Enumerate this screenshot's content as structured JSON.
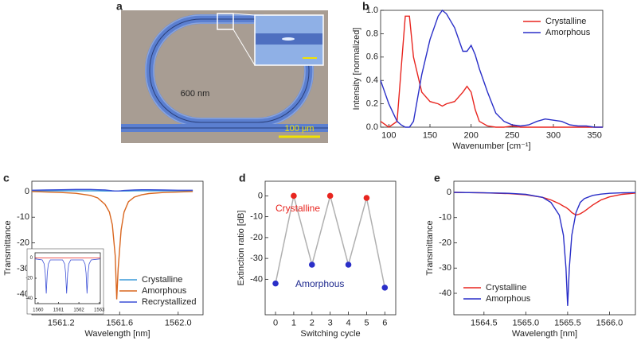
{
  "panel_labels": [
    "a",
    "b",
    "c",
    "d",
    "e"
  ],
  "image": {
    "label": "600 nm",
    "scale_bar": "100 μm"
  },
  "chart_data": [
    {
      "type": "line",
      "xlabel": "Wavenumber [cm⁻¹]",
      "ylabel": "Intensity [normalized]",
      "x": [
        90,
        100,
        110,
        115,
        120,
        125,
        130,
        140,
        150,
        160,
        165,
        170,
        180,
        190,
        195,
        200,
        205,
        210,
        220,
        230,
        240,
        250,
        260,
        270,
        280,
        290,
        300,
        310,
        320,
        330,
        340,
        350,
        360
      ],
      "series": [
        {
          "name": "Crystalline",
          "color": "#e8251f",
          "values": [
            0.05,
            0.0,
            0.05,
            0.5,
            0.95,
            0.95,
            0.6,
            0.3,
            0.22,
            0.2,
            0.18,
            0.2,
            0.22,
            0.3,
            0.35,
            0.3,
            0.15,
            0.05,
            0.01,
            0,
            0,
            0.01,
            0,
            0,
            0,
            0,
            0,
            0,
            0,
            0,
            0,
            0,
            0
          ]
        },
        {
          "name": "Amorphous",
          "color": "#2a2fc8",
          "values": [
            0.4,
            0.2,
            0.05,
            0.02,
            0.0,
            0.0,
            0.05,
            0.45,
            0.75,
            0.95,
            1.0,
            0.97,
            0.85,
            0.65,
            0.65,
            0.7,
            0.62,
            0.5,
            0.3,
            0.12,
            0.05,
            0.02,
            0.01,
            0.02,
            0.05,
            0.07,
            0.06,
            0.05,
            0.02,
            0.01,
            0.01,
            0,
            0
          ]
        }
      ],
      "xlim": [
        90,
        360
      ],
      "xticks": [
        100,
        150,
        200,
        250,
        300,
        350
      ],
      "ylim": [
        0,
        1
      ],
      "yticks": [
        {
          "value": 0,
          "label": "0.0"
        },
        {
          "value": 0.2,
          "label": "0.2"
        },
        {
          "value": 0.4,
          "label": "0.4"
        },
        {
          "value": 0.6,
          "label": "0.6"
        },
        {
          "value": 0.8,
          "label": "0.8"
        },
        {
          "value": 1,
          "label": "1.0"
        }
      ],
      "legend": "upper right"
    },
    {
      "type": "line",
      "xlabel": "Wavelength [nm]",
      "ylabel": "Transmittance",
      "x": [
        1561.0,
        1561.1,
        1561.2,
        1561.3,
        1561.4,
        1561.45,
        1561.5,
        1561.53,
        1561.55,
        1561.57,
        1561.58,
        1561.59,
        1561.61,
        1561.63,
        1561.66,
        1561.7,
        1561.75,
        1561.8,
        1561.9,
        1562.0,
        1562.1
      ],
      "series": [
        {
          "name": "Crystalline",
          "color": "#3a9ad9",
          "values": [
            0.3,
            0.3,
            0.3,
            0.3,
            0.3,
            0.3,
            0.2,
            0.2,
            0.2,
            0.2,
            0.2,
            0.2,
            0.2,
            0.2,
            0.2,
            0.3,
            0.3,
            0.3,
            0.3,
            0.3,
            0.3
          ]
        },
        {
          "name": "Amorphous",
          "color": "#d9661f",
          "values": [
            0,
            -0.2,
            -0.4,
            -0.7,
            -1.5,
            -2.5,
            -5,
            -8,
            -13,
            -25,
            -42,
            -30,
            -15,
            -8,
            -4,
            -2.2,
            -1.3,
            -0.8,
            -0.4,
            -0.2,
            0
          ]
        },
        {
          "name": "Recrystallized",
          "color": "#3b4fd6",
          "values": [
            0.5,
            0.6,
            0.7,
            0.8,
            0.8,
            0.7,
            0.6,
            0.4,
            0.3,
            0.2,
            0.2,
            0.2,
            0.3,
            0.4,
            0.5,
            0.6,
            0.7,
            0.7,
            0.6,
            0.5,
            0.5
          ]
        }
      ],
      "xlim": [
        1561.0,
        1562.17
      ],
      "xticks": [
        1561.2,
        1561.6,
        {
          "value": 1562,
          "label": "1562.0"
        }
      ],
      "ylim": [
        -48,
        4
      ],
      "yticks": [
        0,
        -10,
        -20,
        -30,
        -40
      ],
      "legend": "lower right"
    },
    {
      "type": "line",
      "x": [
        1559.85,
        1560.2,
        1560.3,
        1560.35,
        1560.4,
        1560.45,
        1560.5,
        1560.6,
        1561.2,
        1561.3,
        1561.35,
        1561.4,
        1561.45,
        1561.5,
        1561.6,
        1562.2,
        1562.3,
        1562.35,
        1562.4,
        1562.45,
        1562.5,
        1562.6,
        1563.05
      ],
      "series": [
        {
          "color": "#e8251f",
          "values": [
            0,
            0,
            0,
            0,
            0,
            0,
            0,
            0,
            0,
            0,
            0,
            0,
            0,
            0,
            0,
            0,
            0,
            0,
            0,
            0,
            0,
            0,
            0
          ]
        },
        {
          "color": "#3b4fd6",
          "values": [
            -1,
            -2,
            -6,
            -15,
            -35,
            -15,
            -6,
            -2,
            -2,
            -6,
            -15,
            -35,
            -15,
            -6,
            -2,
            -2,
            -6,
            -15,
            -35,
            -15,
            -6,
            -2,
            -1
          ]
        }
      ],
      "xlim": [
        1559.85,
        1563.05
      ],
      "xticks": [
        1560,
        1561,
        1562,
        1563
      ],
      "ylim": [
        -45,
        5
      ],
      "yticks": [
        0,
        -20,
        -40
      ]
    },
    {
      "type": "scatter",
      "xlabel": "Switching cycle",
      "ylabel": "Extinction ratio [dB]",
      "x": [
        0,
        1,
        2,
        3,
        4,
        5,
        6
      ],
      "values": [
        -42,
        0,
        -33,
        0,
        -33,
        -1,
        -44
      ],
      "point_colors": [
        "#2a2fc8",
        "#e8251f",
        "#2a2fc8",
        "#e8251f",
        "#2a2fc8",
        "#e8251f",
        "#2a2fc8"
      ],
      "line_color": "#b0b0b0",
      "annotations": [
        {
          "text": "Crystalline",
          "color": "#e8251f"
        },
        {
          "text": "Amorphous",
          "color": "#1f2a8f"
        }
      ],
      "xlim": [
        -0.57,
        6.6
      ],
      "xticks": [
        0,
        1,
        2,
        3,
        4,
        5,
        6
      ],
      "ylim": [
        -57,
        7
      ],
      "yticks": [
        0,
        -10,
        -20,
        -30,
        -40
      ]
    },
    {
      "type": "line",
      "xlabel": "Wavelength [nm]",
      "ylabel": "Transmittance",
      "x": [
        1564.14,
        1564.5,
        1564.8,
        1565.0,
        1565.2,
        1565.3,
        1565.4,
        1565.45,
        1565.48,
        1565.5,
        1565.52,
        1565.55,
        1565.6,
        1565.65,
        1565.7,
        1565.8,
        1565.9,
        1566.0,
        1566.15,
        1566.31
      ],
      "series": [
        {
          "name": "Crystalline",
          "color": "#e8251f",
          "values": [
            0,
            -0.2,
            -0.5,
            -1,
            -2,
            -3,
            -4.5,
            -5.5,
            -6,
            -6.5,
            -7,
            -8,
            -9,
            -8.5,
            -7.5,
            -5,
            -3,
            -1.8,
            -0.8,
            -0.3
          ]
        },
        {
          "name": "Amorphous",
          "color": "#2a2fc8",
          "values": [
            0,
            -0.2,
            -0.4,
            -0.8,
            -2,
            -4,
            -9,
            -17,
            -30,
            -45,
            -30,
            -17,
            -8,
            -4,
            -2.5,
            -1.2,
            -0.7,
            -0.4,
            -0.2,
            -0.1
          ]
        }
      ],
      "xlim": [
        1564.14,
        1566.31
      ],
      "xticks": [
        1564.5,
        {
          "value": 1565,
          "label": "1565.0"
        },
        1565.5,
        {
          "value": 1566,
          "label": "1566.0"
        }
      ],
      "ylim": [
        -48.5,
        4.4
      ],
      "yticks": [
        0,
        -10,
        -20,
        -30,
        -40
      ],
      "legend": "lower left"
    }
  ]
}
